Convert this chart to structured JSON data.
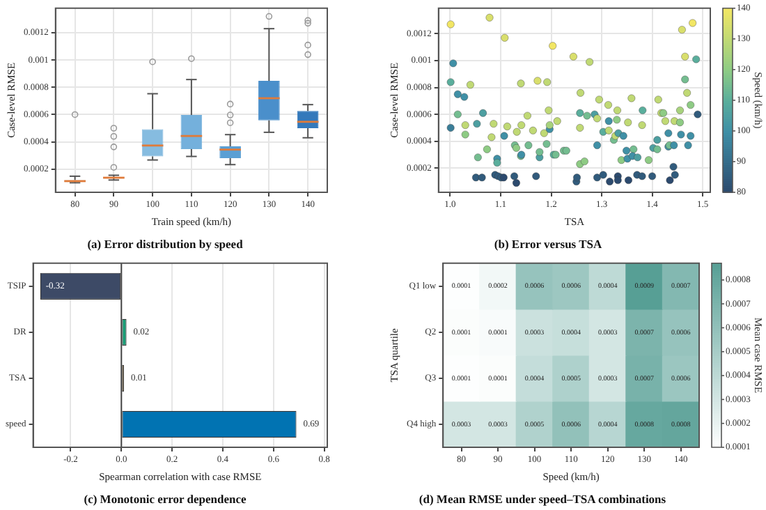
{
  "chart_data": [
    {
      "type": "box",
      "title": "(a) Error distribution by speed",
      "xlabel": "Train speed (km/h)",
      "ylabel": "Case-level RMSE",
      "categories": [
        "80",
        "90",
        "100",
        "110",
        "120",
        "130",
        "140"
      ],
      "colors": [
        "#b3d3ea",
        "#a5cbe7",
        "#86bce0",
        "#74b0dc",
        "#5a9fd4",
        "#4a8fcb",
        "#3479bb"
      ],
      "boxes": [
        {
          "low": 0.0001,
          "q1": 0.000105,
          "median": 0.000112,
          "q3": 0.00012,
          "high": 0.000148,
          "outliers": [
            0.0006
          ]
        },
        {
          "low": 0.00012,
          "q1": 0.000132,
          "median": 0.000137,
          "q3": 0.000143,
          "high": 0.000155,
          "outliers": [
            0.000213,
            0.000363,
            0.00044,
            0.0005
          ]
        },
        {
          "low": 0.000267,
          "q1": 0.000293,
          "median": 0.000373,
          "q3": 0.000493,
          "high": 0.000753,
          "outliers": [
            0.000987
          ]
        },
        {
          "low": 0.000293,
          "q1": 0.000347,
          "median": 0.000443,
          "q3": 0.000597,
          "high": 0.000857,
          "outliers": [
            0.00101
          ]
        },
        {
          "low": 0.000233,
          "q1": 0.00028,
          "median": 0.000343,
          "q3": 0.000367,
          "high": 0.000453,
          "outliers": [
            0.00054,
            0.000597,
            0.000677
          ]
        },
        {
          "low": 0.00047,
          "q1": 0.000557,
          "median": 0.00072,
          "q3": 0.000847,
          "high": 0.00123,
          "outliers": [
            0.00132
          ]
        },
        {
          "low": 0.00043,
          "q1": 0.0005,
          "median": 0.000547,
          "q3": 0.000627,
          "high": 0.000673,
          "outliers": [
            0.00104,
            0.00111,
            0.00127,
            0.00129
          ]
        }
      ],
      "ylim": [
        3e-05,
        0.00138
      ],
      "yticks": [
        0.0002,
        0.0004,
        0.0006,
        0.0008,
        0.001,
        0.0012
      ],
      "grid": true
    },
    {
      "type": "scatter",
      "title": "(b) Error versus TSA",
      "xlabel": "TSA",
      "ylabel": "Case-level RMSE",
      "clabel": "Speed (km/h)",
      "clim": [
        80,
        140
      ],
      "cticks": [
        80,
        90,
        100,
        110,
        120,
        130,
        140
      ],
      "x": [
        1.001,
        1.006,
        1.001,
        1.015,
        1.028,
        1.001,
        1.015,
        1.03,
        1.03,
        1.04,
        1.055,
        1.053,
        1.065,
        1.051,
        1.063,
        1.073,
        1.078,
        1.082,
        1.086,
        1.089,
        1.093,
        1.093,
        1.095,
        1.101,
        1.106,
        1.107,
        1.108,
        1.113,
        1.127,
        1.128,
        1.132,
        1.131,
        1.131,
        1.14,
        1.14,
        1.141,
        1.141,
        1.153,
        1.155,
        1.164,
        1.17,
        1.173,
        1.177,
        1.177,
        1.186,
        1.191,
        1.192,
        1.195,
        1.197,
        1.197,
        1.203,
        1.205,
        1.212,
        1.209,
        1.225,
        1.23,
        1.244,
        1.25,
        1.251,
        1.257,
        1.258,
        1.257,
        1.257,
        1.266,
        1.271,
        1.276,
        1.286,
        1.291,
        1.291,
        1.295,
        1.291,
        1.303,
        1.303,
        1.314,
        1.313,
        1.314,
        1.316,
        1.324,
        1.327,
        1.333,
        1.331,
        1.33,
        1.332,
        1.332,
        1.343,
        1.339,
        1.349,
        1.351,
        1.353,
        1.352,
        1.359,
        1.363,
        1.361,
        1.37,
        1.371,
        1.381,
        1.38,
        1.38,
        1.393,
        1.4,
        1.402,
        1.41,
        1.412,
        1.41,
        1.418,
        1.422,
        1.426,
        1.432,
        1.432,
        1.434,
        1.435,
        1.442,
        1.445,
        1.443,
        1.444,
        1.455,
        1.455,
        1.457,
        1.459,
        1.465,
        1.465,
        1.469,
        1.471,
        1.476,
        1.476,
        1.48,
        1.487,
        1.49
      ],
      "values": [
        0.00127,
        0.00098,
        0.00084,
        0.00075,
        0.00073,
        0.0005,
        0.0006,
        0.00052,
        0.00045,
        0.00082,
        0.00028,
        0.00053,
        0.00061,
        0.00013,
        0.00013,
        0.00034,
        0.00132,
        0.00043,
        0.00053,
        0.00015,
        0.00027,
        0.00024,
        0.00014,
        0.00013,
        0.00013,
        0.00044,
        0.00117,
        0.00051,
        0.00014,
        0.00037,
        0.00047,
        9e-05,
        0.00035,
        0.00029,
        0.00083,
        0.00052,
        0.0003,
        0.00059,
        0.00037,
        0.00048,
        0.00014,
        0.00085,
        0.00028,
        0.00032,
        0.00046,
        0.00038,
        0.00084,
        0.00063,
        0.00049,
        0.00052,
        0.00111,
        0.0003,
        0.00055,
        0.0003,
        0.00033,
        0.00033,
        0.00103,
        0.0001,
        0.00013,
        0.00061,
        0.00076,
        0.0005,
        0.00023,
        0.00025,
        0.00059,
        0.00099,
        0.0006,
        0.00037,
        0.00057,
        0.00071,
        0.00013,
        0.00015,
        0.00047,
        0.00055,
        0.00067,
        0.00048,
        0.0001,
        0.00041,
        0.00044,
        0.00046,
        0.00063,
        0.00056,
        0.00014,
        0.00011,
        0.00044,
        0.00026,
        0.00033,
        0.00027,
        0.00011,
        0.00054,
        0.00072,
        0.00034,
        0.00029,
        0.00015,
        0.00028,
        0.00063,
        0.00052,
        0.00014,
        0.00026,
        0.00014,
        0.00035,
        0.00034,
        0.00071,
        0.00041,
        0.00061,
        0.00061,
        0.00055,
        0.00036,
        0.00046,
        0.00037,
        0.00011,
        0.00021,
        0.00015,
        0.00037,
        0.00055,
        0.00063,
        0.00054,
        0.00045,
        0.00123,
        0.00103,
        0.00086,
        0.00076,
        0.00037,
        0.00067,
        0.00044,
        0.00128,
        0.00101,
        0.0006
      ],
      "cvalues": [
        140,
        100,
        110,
        100,
        100,
        95,
        115,
        130,
        120,
        130,
        115,
        105,
        105,
        85,
        85,
        120,
        135,
        130,
        130,
        85,
        100,
        110,
        85,
        85,
        80,
        100,
        135,
        130,
        85,
        115,
        130,
        80,
        120,
        115,
        130,
        130,
        100,
        130,
        115,
        130,
        85,
        135,
        105,
        115,
        130,
        115,
        130,
        130,
        100,
        125,
        140,
        110,
        130,
        115,
        115,
        115,
        135,
        85,
        85,
        110,
        130,
        130,
        120,
        120,
        115,
        130,
        105,
        100,
        130,
        130,
        85,
        85,
        110,
        100,
        130,
        130,
        80,
        115,
        130,
        105,
        130,
        120,
        80,
        80,
        100,
        120,
        100,
        100,
        80,
        130,
        130,
        115,
        100,
        85,
        105,
        110,
        130,
        85,
        120,
        85,
        105,
        115,
        130,
        105,
        130,
        120,
        130,
        100,
        100,
        115,
        80,
        85,
        85,
        100,
        130,
        125,
        120,
        100,
        135,
        135,
        115,
        130,
        100,
        120,
        100,
        140,
        110,
        85
      ],
      "xlim": [
        0.977,
        1.515
      ],
      "xticks": [
        {
          "value": 1,
          "label": "1.0"
        },
        1.1,
        1.2,
        1.3,
        1.4,
        1.5
      ],
      "ylim": [
        2e-05,
        0.00139
      ],
      "yticks": [
        0.0002,
        0.0004,
        0.0006,
        0.0008,
        0.001,
        0.0012
      ],
      "grid": true
    },
    {
      "type": "bar",
      "orientation": "horizontal",
      "title": "(c) Monotonic error dependence",
      "xlabel": "Spearman correlation with case RMSE",
      "categories": [
        "TSIP",
        "DR",
        "TSA",
        "speed"
      ],
      "values": [
        -0.32,
        0.02,
        0.01,
        0.69
      ],
      "colors": [
        "#3d4a66",
        "#1a9d76",
        "#d99a2b",
        "#0173b2"
      ],
      "data_labels": true,
      "xlim": [
        -0.348,
        0.812
      ],
      "xticks": [
        -0.2,
        {
          "value": 0,
          "label": "0.0"
        },
        0.2,
        0.4,
        0.6,
        0.8
      ],
      "grid": "x",
      "ref_lines": [
        {
          "axis": "x",
          "value": 0
        }
      ]
    },
    {
      "type": "heatmap",
      "title": "(d) Mean RMSE under speed–TSA combinations",
      "xlabel": "Speed (km/h)",
      "ylabel": "TSA quartile",
      "clabel": "Mean case RMSE",
      "categories": [
        "80",
        "90",
        "100",
        "110",
        "120",
        "130",
        "140"
      ],
      "y_categories": [
        "Q1 low",
        "Q2",
        "Q3",
        "Q4 high"
      ],
      "cells": [
        [
          0.00011,
          0.00016,
          0.00058,
          0.00055,
          0.0004,
          0.00087,
          0.00067
        ],
        [
          0.00012,
          0.00013,
          0.00034,
          0.00036,
          0.0003,
          0.0007,
          0.00058
        ],
        [
          0.00011,
          0.00012,
          0.00037,
          0.00047,
          0.0003,
          0.00072,
          0.00056
        ],
        [
          0.0003,
          0.0003,
          0.00046,
          0.0006,
          0.00043,
          0.0008,
          0.00081
        ]
      ],
      "cell_labels": [
        [
          "0.0001",
          "0.0002",
          "0.0006",
          "0.0006",
          "0.0004",
          "0.0009",
          "0.0007"
        ],
        [
          "0.0001",
          "0.0001",
          "0.0003",
          "0.0004",
          "0.0003",
          "0.0007",
          "0.0006"
        ],
        [
          "0.0001",
          "0.0001",
          "0.0004",
          "0.0005",
          "0.0003",
          "0.0007",
          "0.0006"
        ],
        [
          "0.0003",
          "0.0003",
          "0.0005",
          "0.0006",
          "0.0004",
          "0.0008",
          "0.0008"
        ]
      ],
      "clim": [
        0.0001,
        0.00087
      ],
      "cticks": [
        0.0001,
        0.0002,
        0.0003,
        0.0004,
        0.0005,
        0.0006,
        0.0007,
        0.0008
      ]
    }
  ]
}
